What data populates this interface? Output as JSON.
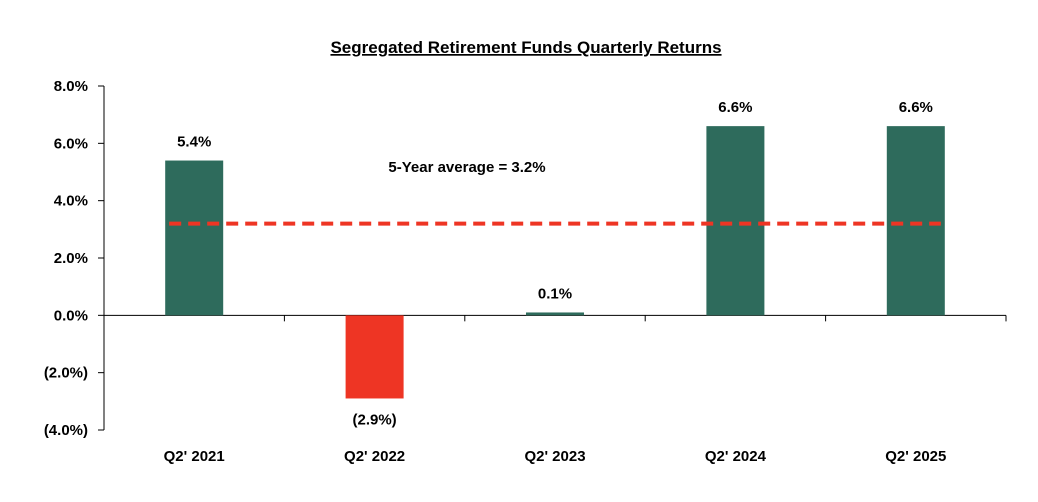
{
  "chart_data": {
    "type": "bar",
    "title": "Segregated Retirement Funds Quarterly Returns",
    "xlabel": "",
    "ylabel": "",
    "categories": [
      "Q2' 2021",
      "Q2' 2022",
      "Q2' 2023",
      "Q2' 2024",
      "Q2' 2025"
    ],
    "values": [
      5.4,
      -2.9,
      0.1,
      6.6,
      6.6
    ],
    "data_labels": [
      "5.4%",
      "(2.9%)",
      "0.1%",
      "6.6%",
      "6.6%"
    ],
    "ylim": [
      -4.0,
      8.0
    ],
    "yticks": [
      8.0,
      6.0,
      4.0,
      2.0,
      0.0,
      -2.0,
      -4.0
    ],
    "ytick_labels": [
      "8.0%",
      "6.0%",
      "4.0%",
      "2.0%",
      "0.0%",
      "(2.0%)",
      "(4.0%)"
    ],
    "average": {
      "value": 3.2,
      "label": "5-Year average = 3.2%"
    },
    "grid": false,
    "legend": "none",
    "colors": {
      "positive": "#2e6b5c",
      "negative": "#ee3524",
      "average_line": "#ee3524",
      "axis": "#000000"
    }
  }
}
